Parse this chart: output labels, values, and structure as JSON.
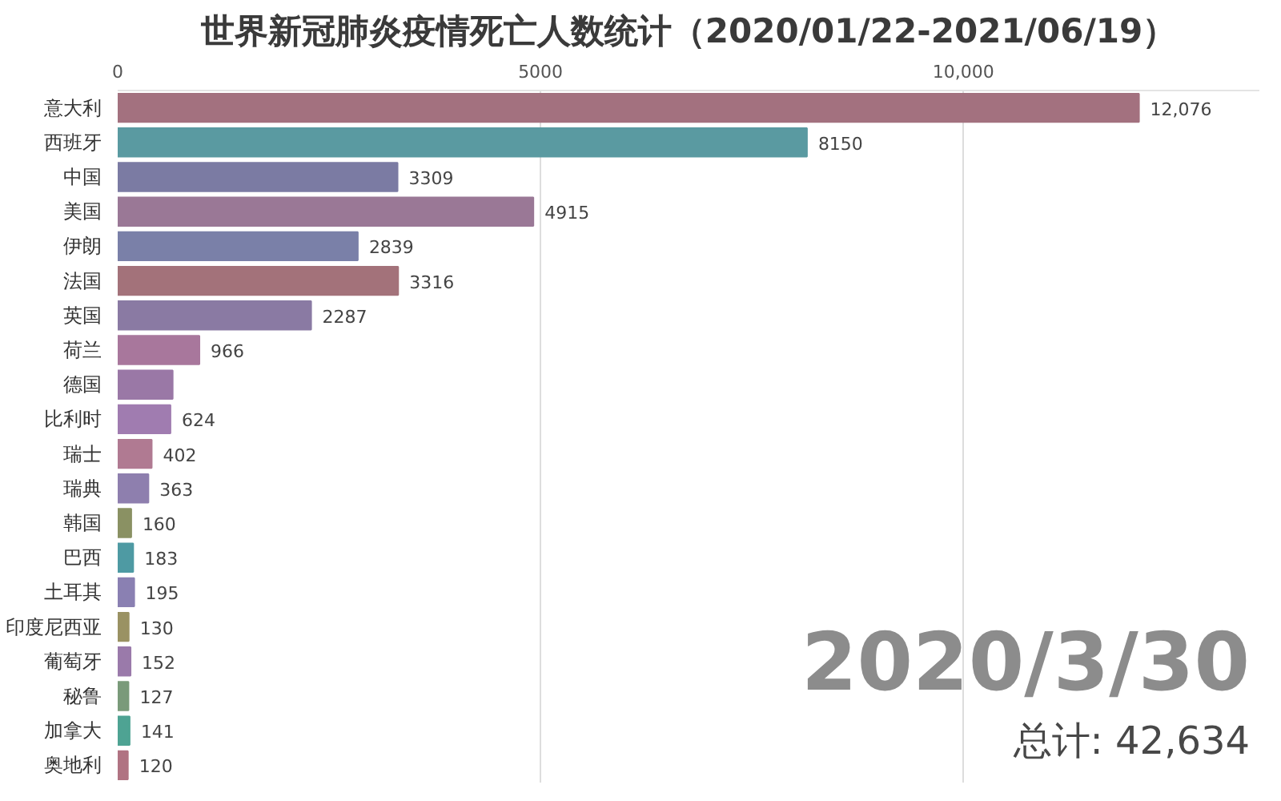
{
  "chart_data": {
    "type": "bar",
    "orientation": "horizontal",
    "title": "世界新冠肺炎疫情死亡人数统计（2020/01/22-2021/06/19）",
    "categories": [
      "意大利",
      "西班牙",
      "中国",
      "美国",
      "伊朗",
      "法国",
      "英国",
      "荷兰",
      "德国",
      "比利时",
      "瑞士",
      "瑞典",
      "韩国",
      "巴西",
      "土耳其",
      "印度尼西亚",
      "葡萄牙",
      "秘鲁",
      "加拿大",
      "奥地利"
    ],
    "values": [
      12076,
      8150,
      3309,
      4915,
      2839,
      3316,
      2287,
      966,
      650,
      624,
      402,
      363,
      160,
      183,
      195,
      130,
      152,
      127,
      141,
      120
    ],
    "value_labels": [
      "12,076",
      "8150",
      "3309",
      "4915",
      "2839",
      "3316",
      "2287",
      "966",
      null,
      "624",
      "402",
      "363",
      "160",
      "183",
      "195",
      "130",
      "152",
      "127",
      "141",
      "120"
    ],
    "colors": [
      "#a3717f",
      "#5a9aa1",
      "#7b7ba3",
      "#9a7896",
      "#7a80a8",
      "#a3727a",
      "#8a7aa3",
      "#a8779c",
      "#9a78a6",
      "#a07cb0",
      "#b07a92",
      "#8e7fae",
      "#8a9163",
      "#4e9aa3",
      "#8a80b2",
      "#9a9263",
      "#9a7aaa",
      "#7a9a7a",
      "#4ea393",
      "#b07382"
    ],
    "xlim": [
      0,
      13500
    ],
    "xticks": [
      0,
      5000,
      {
        "value": 10000,
        "label": "10,000"
      }
    ],
    "grid": "x",
    "annotations": [
      "2020/3/30",
      "总计: 42,634"
    ]
  }
}
